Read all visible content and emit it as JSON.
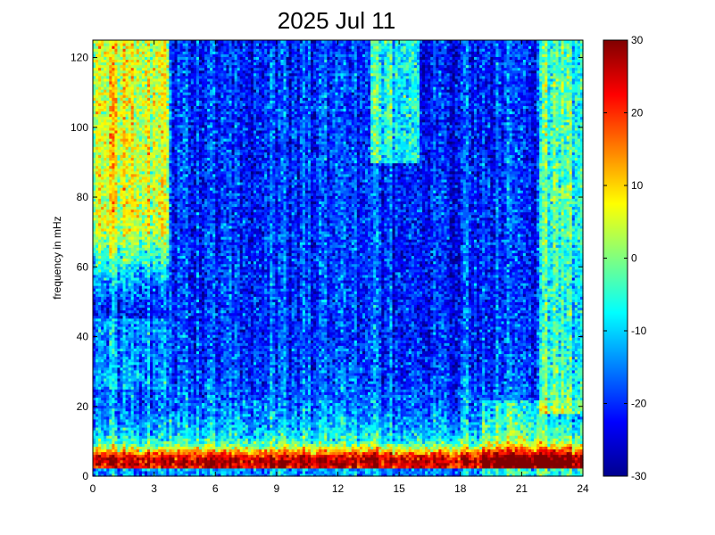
{
  "chart_data": {
    "type": "heatmap",
    "title": "2025 Jul 11",
    "xlabel": "",
    "ylabel": "frequency in mHz",
    "x_range": [
      0,
      24
    ],
    "y_range": [
      0,
      125
    ],
    "x_ticks": [
      0,
      3,
      6,
      9,
      12,
      15,
      18,
      21,
      24
    ],
    "y_ticks": [
      0,
      20,
      40,
      60,
      80,
      100,
      120
    ],
    "colorbar": {
      "colormap": "jet",
      "range": [
        -30,
        30
      ],
      "ticks": [
        30,
        20,
        10,
        0,
        -10,
        -20,
        -30
      ]
    },
    "grid": false
  }
}
